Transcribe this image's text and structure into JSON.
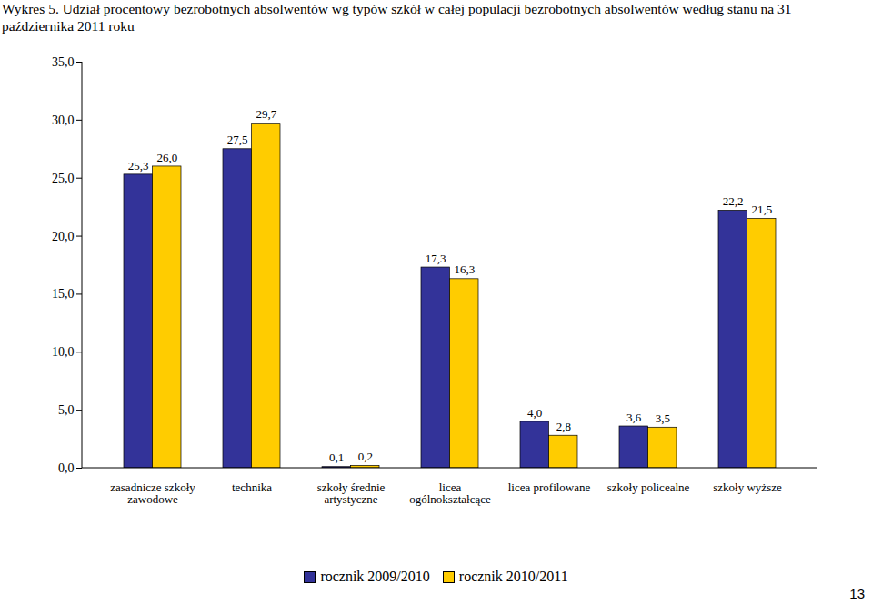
{
  "page_number": "13",
  "chart_data": {
    "type": "bar",
    "title": "Wykres 5. Udział procentowy bezrobotnych absolwentów wg typów szkół w całej populacji bezrobotnych absolwentów według stanu na 31 października 2011 roku",
    "categories": [
      "zasadnicze szkoły zawodowe",
      "technika",
      "szkoły średnie artystyczne",
      "licea ogólnokształcące",
      "licea profilowane",
      "szkoły policealne",
      "szkoły wyższe"
    ],
    "series": [
      {
        "name": "rocznik 2009/2010",
        "color": "#333399",
        "values": [
          25.3,
          27.5,
          0.1,
          17.3,
          4.0,
          3.6,
          22.2
        ],
        "value_labels": [
          "25,3",
          "27,5",
          "0,1",
          "17,3",
          "4,0",
          "3,6",
          "22,2"
        ]
      },
      {
        "name": "rocznik 2010/2011",
        "color": "#ffcc00",
        "values": [
          26.0,
          29.7,
          0.2,
          16.3,
          2.8,
          3.5,
          21.5
        ],
        "value_labels": [
          "26,0",
          "29,7",
          "0,2",
          "16,3",
          "2,8",
          "3,5",
          "21,5"
        ]
      }
    ],
    "ylim": [
      0,
      35
    ],
    "yticks": [
      {
        "value": 0,
        "label": "0,0"
      },
      {
        "value": 5,
        "label": "5,0"
      },
      {
        "value": 10,
        "label": "10,0"
      },
      {
        "value": 15,
        "label": "15,0"
      },
      {
        "value": 20,
        "label": "20,0"
      },
      {
        "value": 25,
        "label": "25,0"
      },
      {
        "value": 30,
        "label": "30,0"
      },
      {
        "value": 35,
        "label": "35,0"
      }
    ],
    "grid": false,
    "legend": "bottom",
    "data_labels": true
  }
}
